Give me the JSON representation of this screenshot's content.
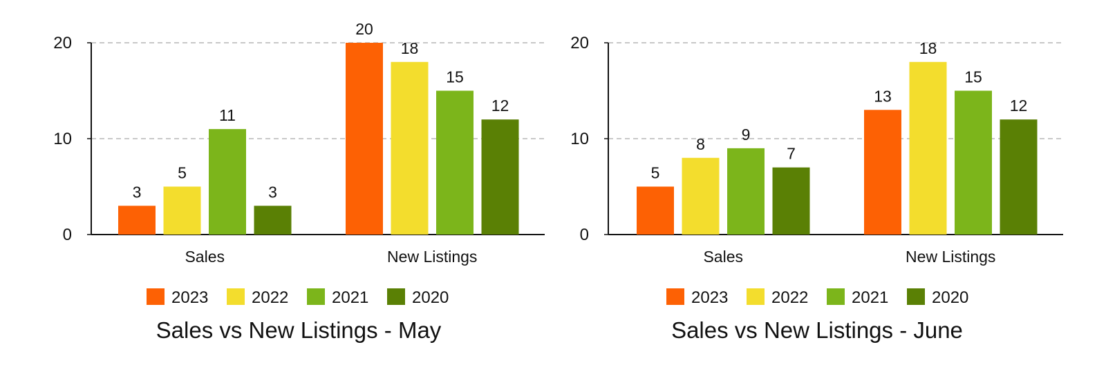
{
  "chart_data": [
    {
      "type": "bar",
      "title": "Sales vs New Listings - May",
      "categories": [
        "Sales",
        "New Listings"
      ],
      "series": [
        {
          "name": "2023",
          "values": [
            3,
            20
          ]
        },
        {
          "name": "2022",
          "values": [
            5,
            18
          ]
        },
        {
          "name": "2021",
          "values": [
            11,
            15
          ]
        },
        {
          "name": "2020",
          "values": [
            3,
            12
          ]
        }
      ],
      "yticks": [
        "0",
        "10",
        "20"
      ],
      "ylim": [
        0,
        20
      ],
      "grid": true,
      "legend_position": "bottom"
    },
    {
      "type": "bar",
      "title": "Sales vs New Listings - June",
      "categories": [
        "Sales",
        "New Listings"
      ],
      "series": [
        {
          "name": "2023",
          "values": [
            5,
            13
          ]
        },
        {
          "name": "2022",
          "values": [
            8,
            18
          ]
        },
        {
          "name": "2021",
          "values": [
            9,
            15
          ]
        },
        {
          "name": "2020",
          "values": [
            7,
            12
          ]
        }
      ],
      "yticks": [
        "0",
        "10",
        "20"
      ],
      "ylim": [
        0,
        20
      ],
      "grid": true,
      "legend_position": "bottom"
    }
  ],
  "colors": {
    "2023": "#fd6104",
    "2022": "#f3dd2d",
    "2021": "#7cb51b",
    "2020": "#5a8005",
    "grid": "#b5b5b5",
    "axis": "#111111"
  }
}
